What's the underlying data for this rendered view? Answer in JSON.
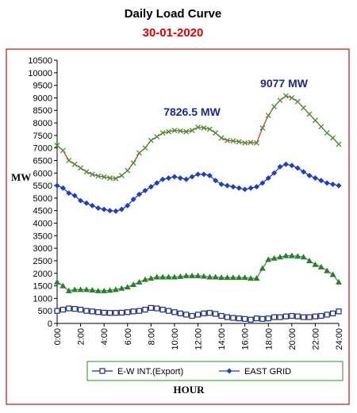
{
  "chart_data": {
    "type": "line",
    "title": "Daily Load Curve",
    "subtitle": "30-01-2020",
    "y_label": "MW",
    "x_label": "HOUR",
    "annotations": [
      "7826.5 MW",
      "9077 MW"
    ],
    "categories": [
      "0:00",
      null,
      null,
      null,
      "2:00",
      null,
      null,
      null,
      "4:00",
      null,
      null,
      null,
      "6:00",
      null,
      null,
      null,
      "8:00",
      null,
      null,
      null,
      "10:00",
      null,
      null,
      null,
      "12:00",
      null,
      null,
      null,
      "14:00",
      null,
      null,
      null,
      "16:00",
      null,
      null,
      null,
      "18:00",
      null,
      null,
      null,
      "20:00",
      null,
      null,
      null,
      "22:00",
      null,
      null,
      null,
      "24:00"
    ],
    "series": [
      {
        "color": "#e03030",
        "marker": "x",
        "marker_color": "#2e9a2e",
        "values": [
          7100,
          6900,
          6500,
          6350,
          6200,
          6050,
          5950,
          5880,
          5850,
          5800,
          5780,
          5900,
          6100,
          6400,
          6800,
          7000,
          7300,
          7450,
          7600,
          7650,
          7700,
          7680,
          7650,
          7700,
          7826.5,
          7800,
          7750,
          7600,
          7400,
          7300,
          7280,
          7250,
          7200,
          7220,
          7200,
          7800,
          8300,
          8650,
          8900,
          9077,
          9000,
          8850,
          8600,
          8350,
          8100,
          7850,
          7600,
          7400,
          7150
        ]
      },
      {
        "name": "EAST GRID",
        "color": "#1f3fbf",
        "marker": "diamond",
        "marker_color": "#1f3fbf",
        "values": [
          5500,
          5400,
          5200,
          5100,
          4900,
          4800,
          4700,
          4600,
          4550,
          4500,
          4480,
          4550,
          4700,
          4950,
          5150,
          5300,
          5450,
          5600,
          5750,
          5800,
          5850,
          5800,
          5750,
          5850,
          5950,
          5950,
          5900,
          5700,
          5550,
          5500,
          5450,
          5400,
          5350,
          5400,
          5450,
          5600,
          5800,
          6000,
          6250,
          6350,
          6300,
          6200,
          6050,
          5900,
          5800,
          5700,
          5600,
          5550,
          5500
        ]
      },
      {
        "color": "#3a9a3a",
        "marker": "triangle",
        "marker_color": "#2e7d2e",
        "values": [
          1650,
          1500,
          1300,
          1350,
          1350,
          1350,
          1330,
          1300,
          1300,
          1320,
          1350,
          1400,
          1450,
          1550,
          1650,
          1750,
          1800,
          1850,
          1850,
          1850,
          1850,
          1870,
          1900,
          1900,
          1900,
          1880,
          1850,
          1850,
          1830,
          1830,
          1830,
          1830,
          1830,
          1800,
          1800,
          2200,
          2550,
          2600,
          2650,
          2700,
          2700,
          2680,
          2650,
          2500,
          2350,
          2250,
          2100,
          1950,
          1650
        ]
      },
      {
        "name": "E-W INT.(Export)",
        "color": "#1a2a8a",
        "marker": "square",
        "marker_color": "#1a2a8a",
        "values": [
          500,
          550,
          600,
          580,
          550,
          500,
          480,
          450,
          430,
          420,
          420,
          430,
          450,
          480,
          500,
          550,
          620,
          600,
          550,
          500,
          450,
          400,
          350,
          300,
          350,
          400,
          420,
          380,
          300,
          250,
          220,
          200,
          180,
          150,
          200,
          180,
          200,
          250,
          250,
          280,
          300,
          280,
          250,
          250,
          280,
          300,
          350,
          400,
          480
        ]
      }
    ],
    "ylim": [
      0,
      10500
    ],
    "yticks": [
      0,
      500,
      1000,
      1500,
      2000,
      2500,
      3000,
      3500,
      4000,
      4500,
      5000,
      5500,
      6000,
      6500,
      7000,
      7500,
      8000,
      8500,
      9000,
      9500,
      10000,
      10500
    ],
    "grid": false
  }
}
